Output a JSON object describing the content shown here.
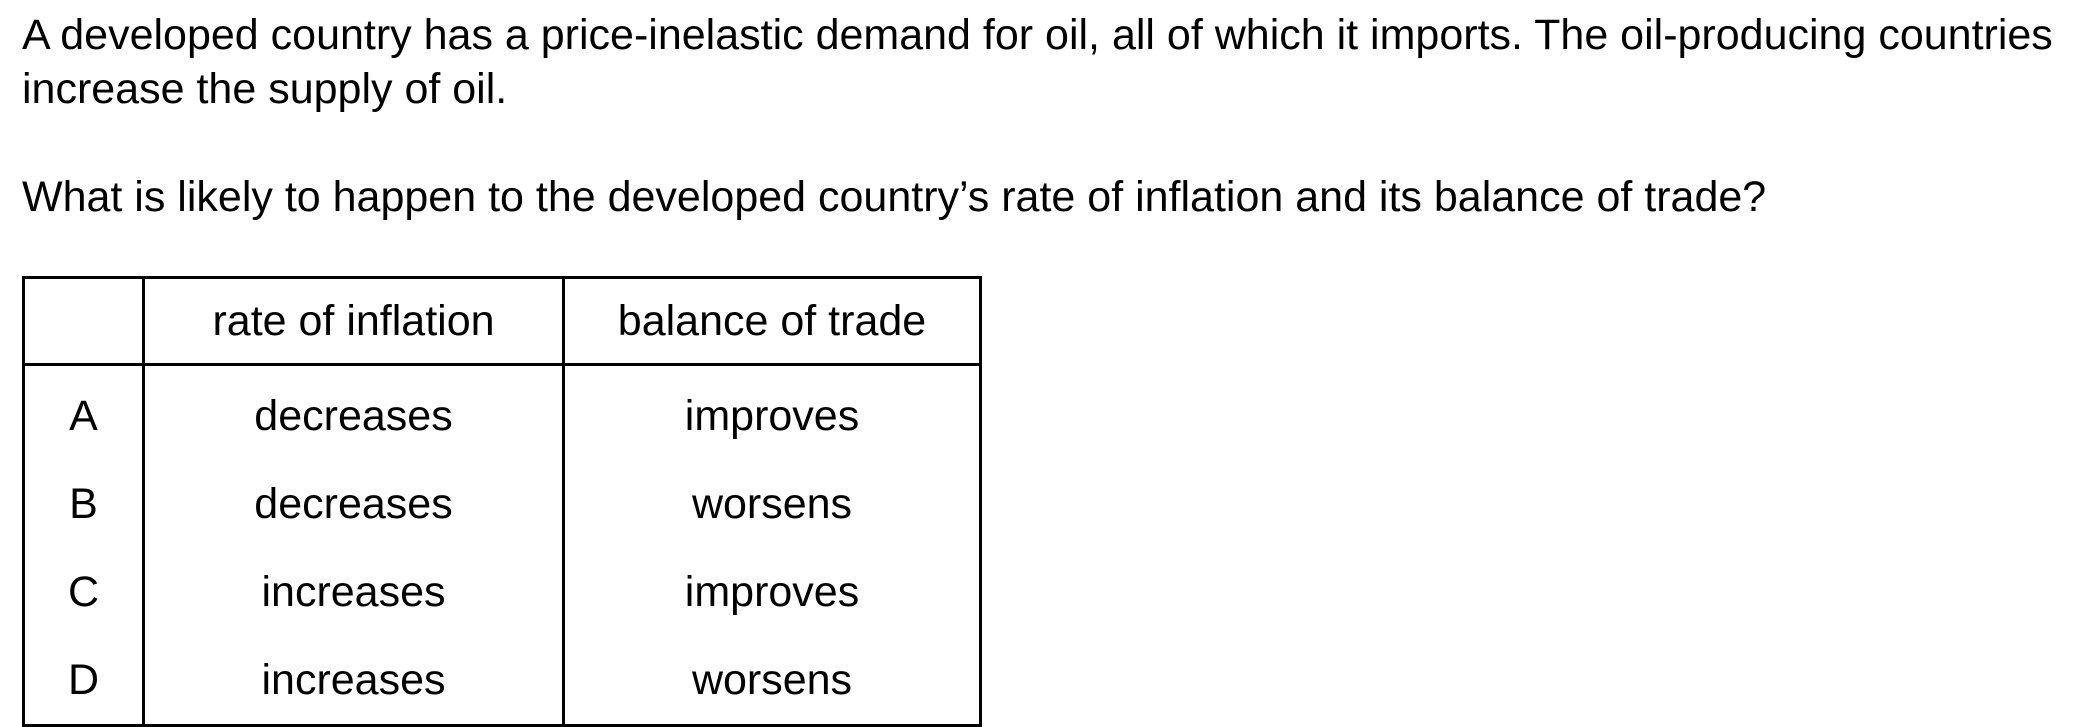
{
  "question": {
    "stem": "A developed country has a price-inelastic demand for oil, all of which it imports. The oil-producing countries increase the supply of oil.",
    "prompt": "What is likely to happen to the developed country’s rate of inflation and its balance of trade?"
  },
  "table": {
    "headers": [
      "",
      "rate of inflation",
      "balance of trade"
    ],
    "rows": [
      {
        "key": "A",
        "inflation": "decreases",
        "trade": "improves"
      },
      {
        "key": "B",
        "inflation": "decreases",
        "trade": "worsens"
      },
      {
        "key": "C",
        "inflation": "increases",
        "trade": "improves"
      },
      {
        "key": "D",
        "inflation": "increases",
        "trade": "worsens"
      }
    ]
  }
}
